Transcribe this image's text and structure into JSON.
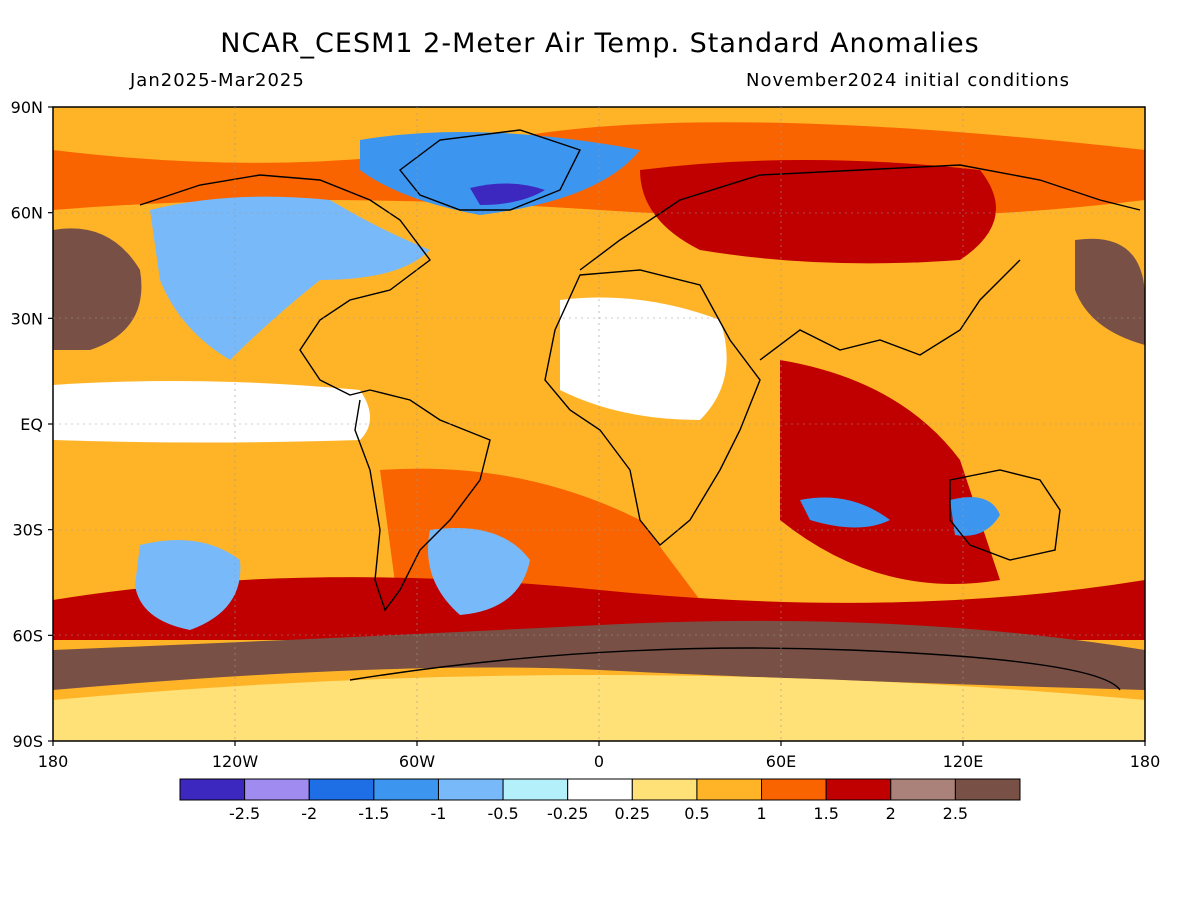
{
  "title": "NCAR_CESM1 2-Meter Air Temp. Standard Anomalies",
  "period": "Jan2025-Mar2025",
  "initial_conditions": "November2024 initial conditions",
  "lat_labels": [
    "90N",
    "60N",
    "30N",
    "EQ",
    "30S",
    "60S",
    "90S"
  ],
  "lon_labels": [
    "180",
    "120W",
    "60W",
    "0",
    "60E",
    "120E",
    "180"
  ],
  "colorbar": {
    "labels": [
      "-2.5",
      "-2",
      "-1.5",
      "-1",
      "-0.5",
      "-0.25",
      "0.25",
      "0.5",
      "1",
      "1.5",
      "2",
      "2.5"
    ],
    "colors": [
      "#3c28be",
      "#a08cf0",
      "#1e6ee6",
      "#3c96f0",
      "#78b9fa",
      "#b4f0fa",
      "#ffffff",
      "#ffe178",
      "#ffb428",
      "#fa6400",
      "#c00000",
      "#aa827a",
      "#785046"
    ]
  },
  "regions": [
    {
      "name": "background",
      "color": "#ffb428"
    },
    {
      "name": "antarctic-ocean-band",
      "color": "#785046"
    },
    {
      "name": "north-pacific-warm",
      "color": "#785046"
    },
    {
      "name": "north-america-cold",
      "color": "#78b9fa"
    },
    {
      "name": "greenland-cold",
      "color": "#3c96f0"
    },
    {
      "name": "greenland-core",
      "color": "#3c28be"
    },
    {
      "name": "north-africa-neutral",
      "color": "#ffffff"
    },
    {
      "name": "south-pacific-cold",
      "color": "#78b9fa"
    },
    {
      "name": "equatorial-pacific-neutral",
      "color": "#ffffff"
    },
    {
      "name": "eurasia-warm",
      "color": "#c00000"
    },
    {
      "name": "australia-cold",
      "color": "#3c96f0"
    }
  ]
}
